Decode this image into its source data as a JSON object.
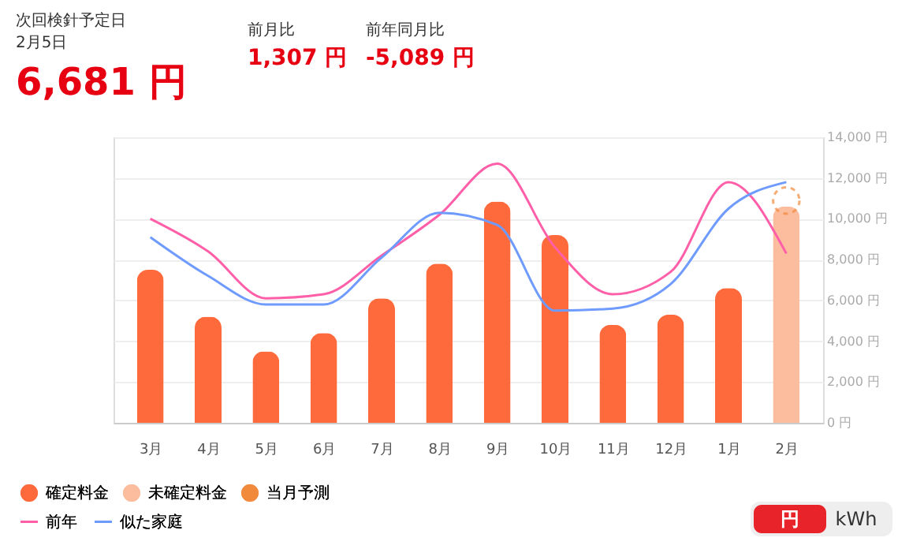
{
  "chart_data": {
    "type": "bar",
    "categories": [
      "3月",
      "4月",
      "5月",
      "6月",
      "7月",
      "8月",
      "9月",
      "10月",
      "11月",
      "12月",
      "1月",
      "2月"
    ],
    "series": [
      {
        "name": "確定料金",
        "color": "#ff6a3d",
        "values": [
          7500,
          5200,
          3500,
          4400,
          6100,
          7800,
          10850,
          9200,
          4800,
          5300,
          6600,
          null
        ]
      },
      {
        "name": "未確定料金",
        "color": "#fcbc9e",
        "values": [
          null,
          null,
          null,
          null,
          null,
          null,
          null,
          null,
          null,
          null,
          null,
          10600
        ]
      },
      {
        "name": "当月予測",
        "type": "scatter",
        "color": "#f28a3c",
        "line_style": "dashed",
        "values": [
          null,
          null,
          null,
          null,
          null,
          null,
          null,
          null,
          null,
          null,
          null,
          10900
        ]
      },
      {
        "name": "前年",
        "type": "line",
        "color": "#ff5fa8",
        "values": [
          10000,
          8400,
          6100,
          6300,
          8200,
          10200,
          12700,
          8600,
          6300,
          7400,
          11800,
          8300
        ]
      },
      {
        "name": "似た家庭",
        "type": "line",
        "color": "#6f9bff",
        "values": [
          9100,
          7200,
          5800,
          5800,
          8100,
          10300,
          9700,
          5500,
          5600,
          6800,
          10500,
          11800
        ]
      }
    ],
    "ylim": [
      0,
      14000
    ],
    "yticks": [
      {
        "value": 0,
        "label": "0 円"
      },
      {
        "value": 2000,
        "label": "2,000 円"
      },
      {
        "value": 4000,
        "label": "4,000 円"
      },
      {
        "value": 6000,
        "label": "6,000 円"
      },
      {
        "value": 8000,
        "label": "8,000 円"
      },
      {
        "value": 10000,
        "label": "10,000 円"
      },
      {
        "value": 12000,
        "label": "12,000 円"
      },
      {
        "value": 14000,
        "label": "14,000 円"
      }
    ],
    "grid": "y",
    "legend": "bottom left",
    "annotations": [
      "次回検針予定日",
      "2月5日",
      "6,681 円",
      "前月比",
      "1,307 円",
      "前年同月比",
      "-5,089 円",
      "円",
      "kWh"
    ]
  }
}
